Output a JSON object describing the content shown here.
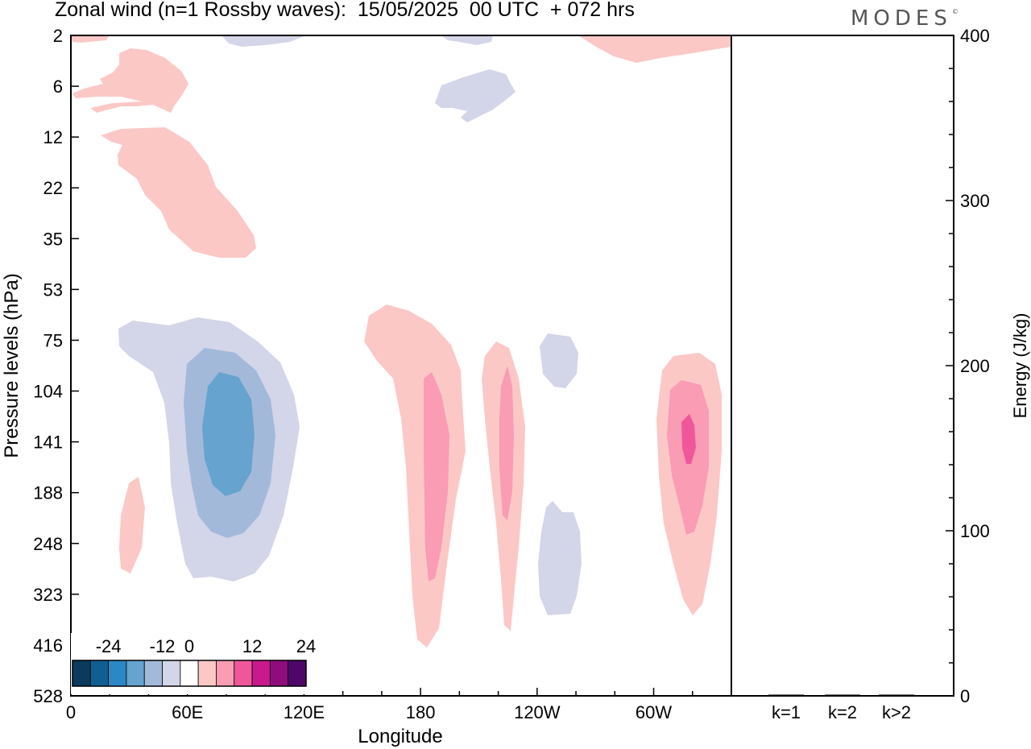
{
  "header": {
    "title": "Zonal wind (n=1 Rossby waves):  15/05/2025  00 UTC  + 072 hrs",
    "brand": "MODES",
    "brand_mark": "©"
  },
  "chart_data": [
    {
      "type": "heatmap",
      "title": "Zonal wind (n=1 Rossby waves):  15/05/2025  00 UTC  + 072 hrs",
      "xlabel": "Longitude",
      "ylabel": "Pressure levels (hPa)",
      "x_ticks": [
        "0",
        "60E",
        "120E",
        "180",
        "120W",
        "60W"
      ],
      "x_tick_degrees": [
        0,
        60,
        120,
        180,
        240,
        300
      ],
      "xlim_degrees": [
        0,
        340
      ],
      "y_ticks": [
        "2",
        "6",
        "12",
        "22",
        "35",
        "53",
        "75",
        "104",
        "141",
        "188",
        "248",
        "323",
        "416",
        "528"
      ],
      "y_scale": "log-pressure, inverted",
      "grid": false,
      "colorbar": {
        "placement": "bottom-left",
        "tick_labels": [
          "-24",
          "-12",
          "0",
          "12",
          "24"
        ],
        "levels": [
          -28,
          -24,
          -20,
          -16,
          -12,
          -8,
          -4,
          4,
          8,
          12,
          16,
          20,
          24,
          28
        ],
        "colors": [
          "#0b3a5c",
          "#0f5f95",
          "#2b88c4",
          "#66a3cf",
          "#a3b9da",
          "#d3d5e8",
          "#ffffff",
          "#fbc8c6",
          "#f99cb4",
          "#f0579a",
          "#c81a8d",
          "#8e0c7c",
          "#4e0668"
        ]
      },
      "features": [
        {
          "name": "negative anomaly",
          "lon_range": [
            20,
            100
          ],
          "p_range": [
            75,
            330
          ],
          "min_level": -16
        },
        {
          "name": "positive anomaly",
          "lon_range": [
            170,
            210
          ],
          "p_range": [
            60,
            420
          ],
          "max_level": 12
        },
        {
          "name": "positive anomaly",
          "lon_range": [
            220,
            240
          ],
          "p_range": [
            85,
            420
          ],
          "max_level": 12
        },
        {
          "name": "negative anomaly",
          "lon_range": [
            250,
            265
          ],
          "p_range": [
            200,
            300
          ],
          "min_level": -4
        },
        {
          "name": "positive anomaly",
          "lon_range": [
            300,
            320
          ],
          "p_range": [
            90,
            300
          ],
          "max_level": 16
        }
      ]
    },
    {
      "type": "bar",
      "categories": [
        "k=1",
        "k=2",
        "k>2"
      ],
      "values": [
        0.3,
        0.3,
        0.3
      ],
      "ylabel": "Energy (J/kg)",
      "y_ticks": [
        "0",
        "100",
        "200",
        "300",
        "400"
      ],
      "ylim": [
        0,
        400
      ]
    }
  ]
}
